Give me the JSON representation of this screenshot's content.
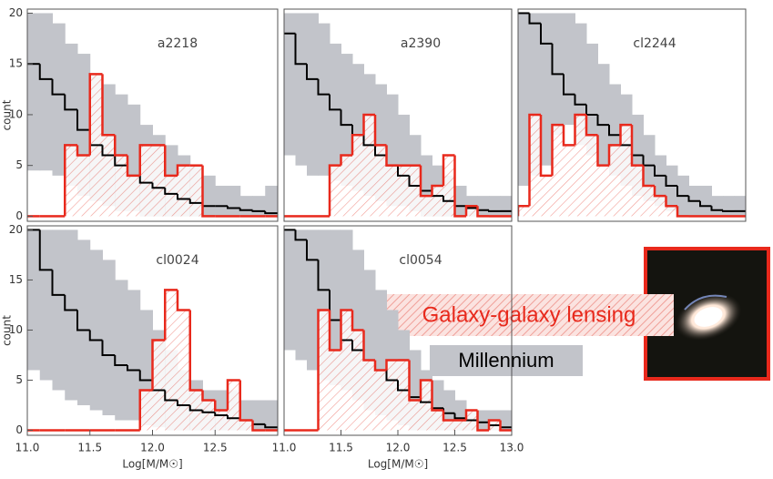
{
  "legend": [
    {
      "name": "Galaxy-galaxy lensing",
      "color": "#e8291c"
    },
    {
      "name": "Millennium",
      "color": "#c2c4ca"
    }
  ],
  "chart_data": [
    {
      "type": "histogram",
      "title": "a2218",
      "ylabel": "count",
      "bins": [
        11.0,
        11.1,
        11.2,
        11.3,
        11.4,
        11.5,
        11.6,
        11.7,
        11.8,
        11.9,
        12.0,
        12.1,
        12.2,
        12.3,
        12.4,
        12.5,
        12.6,
        12.7,
        12.8,
        12.9,
        13.0
      ],
      "counts": [
        0,
        0,
        0,
        7,
        6,
        14,
        8,
        6,
        4,
        7,
        7,
        4,
        5,
        5,
        0,
        0,
        0,
        0,
        0,
        0
      ],
      "median": [
        15,
        13.5,
        12,
        10.5,
        8.5,
        7,
        6,
        5,
        4,
        3.3,
        2.8,
        2.2,
        1.7,
        1.3,
        1,
        1,
        0.8,
        0.6,
        0.5,
        0.3
      ],
      "band_low": [
        4.5,
        4.5,
        4,
        3,
        2,
        1.5,
        1,
        0.5,
        0.5,
        0,
        0,
        0,
        0,
        0,
        0,
        0,
        0,
        0,
        0,
        0
      ],
      "band_high": [
        20,
        20,
        19,
        17,
        16,
        14,
        13,
        12,
        11,
        9,
        8,
        7,
        6,
        5,
        4,
        3,
        3,
        2,
        2,
        3
      ],
      "ylim": [
        -0.5,
        20.4
      ],
      "yticks": [
        0,
        5,
        10,
        15,
        20
      ]
    },
    {
      "type": "histogram",
      "title": "a2390",
      "bins": [
        11.0,
        11.1,
        11.2,
        11.3,
        11.4,
        11.5,
        11.6,
        11.7,
        11.8,
        11.9,
        12.0,
        12.1,
        12.2,
        12.3,
        12.4,
        12.5,
        12.6,
        12.7,
        12.8,
        12.9,
        13.0
      ],
      "counts": [
        0,
        0,
        0,
        0,
        5,
        6,
        8,
        10,
        7,
        5,
        5,
        5,
        2,
        3,
        6,
        0,
        1,
        0,
        0,
        0
      ],
      "median": [
        18,
        15,
        13.5,
        12,
        10.5,
        9,
        8,
        7,
        6,
        5,
        4,
        3,
        2.5,
        2,
        1.5,
        1,
        0.8,
        0.6,
        0.5,
        0.5
      ],
      "band_low": [
        6,
        5,
        4,
        4,
        3.5,
        3,
        2.5,
        2,
        1.5,
        1,
        1,
        0.5,
        0,
        0,
        0,
        0,
        0,
        0,
        0,
        0
      ],
      "band_high": [
        20,
        20,
        20,
        19,
        17,
        16,
        15,
        14,
        13,
        12,
        10,
        8,
        6,
        5,
        4,
        3,
        2,
        2,
        2,
        2
      ],
      "ylim": [
        -0.5,
        20.4
      ]
    },
    {
      "type": "histogram",
      "title": "cl2244",
      "bins": [
        11.0,
        11.1,
        11.2,
        11.3,
        11.4,
        11.5,
        11.6,
        11.7,
        11.8,
        11.9,
        12.0,
        12.1,
        12.2,
        12.3,
        12.4,
        12.5,
        12.6,
        12.7,
        12.8,
        12.9,
        13.0
      ],
      "counts": [
        1,
        10,
        4,
        9,
        7,
        10,
        8,
        5,
        7,
        9,
        5,
        3,
        2,
        1,
        0,
        0,
        0,
        0,
        0,
        0
      ],
      "median": [
        20,
        19,
        17,
        14,
        12,
        11,
        10,
        9,
        8,
        7,
        6,
        5,
        4,
        3,
        2,
        1.5,
        1,
        0.6,
        0.5,
        0.5
      ],
      "band_low": [
        3,
        4,
        5,
        8,
        9,
        7,
        6,
        5,
        4,
        3,
        2,
        1.5,
        1,
        0.5,
        0,
        0,
        0,
        0,
        0,
        0
      ],
      "band_high": [
        20,
        20,
        20,
        20,
        20,
        19,
        17,
        15,
        13,
        12,
        10,
        8,
        6,
        5,
        4,
        3,
        3,
        2,
        2,
        2
      ],
      "ylim": [
        -0.5,
        20.4
      ]
    },
    {
      "type": "histogram",
      "title": "cl0024",
      "ylabel": "count",
      "xlabel": "Log[M/M☉]",
      "bins": [
        11.0,
        11.1,
        11.2,
        11.3,
        11.4,
        11.5,
        11.6,
        11.7,
        11.8,
        11.9,
        12.0,
        12.1,
        12.2,
        12.3,
        12.4,
        12.5,
        12.6,
        12.7,
        12.8,
        12.9,
        13.0
      ],
      "counts": [
        0,
        0,
        0,
        0,
        0,
        0,
        0,
        0,
        0,
        4,
        9,
        14,
        12,
        4,
        3,
        2,
        5,
        1,
        0,
        0
      ],
      "median": [
        20,
        16,
        13.5,
        12,
        10,
        9,
        7.5,
        6.5,
        6,
        5,
        4,
        3,
        2.5,
        2,
        1.8,
        1.5,
        1.2,
        1,
        0.6,
        0.3
      ],
      "band_low": [
        6,
        5,
        4,
        3,
        2.5,
        2,
        1.5,
        1,
        1,
        0.5,
        0.3,
        0,
        0,
        0,
        0,
        0,
        0,
        0,
        0,
        0
      ],
      "band_high": [
        20,
        20,
        20,
        20,
        19,
        18,
        17,
        15,
        14,
        12,
        10,
        8,
        6,
        5,
        4,
        4,
        4,
        3,
        3,
        3
      ],
      "xlim": [
        11.0,
        13.0
      ],
      "ylim": [
        -0.5,
        20.4
      ],
      "yticks": [
        0,
        5,
        10,
        15,
        20
      ],
      "xticks": [
        {
          "value": 11.0,
          "label": "11.0"
        },
        {
          "value": 11.5,
          "label": "11.5"
        },
        {
          "value": 12.0,
          "label": "12.0"
        },
        {
          "value": 12.5,
          "label": "12.5"
        }
      ]
    },
    {
      "type": "histogram",
      "title": "cl0054",
      "xlabel": "Log[M/M☉]",
      "bins": [
        11.0,
        11.1,
        11.2,
        11.3,
        11.4,
        11.5,
        11.6,
        11.7,
        11.8,
        11.9,
        12.0,
        12.1,
        12.2,
        12.3,
        12.4,
        12.5,
        12.6,
        12.7,
        12.8,
        12.9,
        13.0
      ],
      "counts": [
        0,
        0,
        0,
        12,
        8,
        12,
        10,
        7,
        6,
        7,
        7,
        3,
        5,
        2,
        1,
        1,
        2,
        0,
        1,
        0
      ],
      "median": [
        20,
        19,
        17,
        14,
        11,
        9,
        8,
        7,
        6,
        5,
        4,
        3.3,
        2.8,
        2.2,
        1.7,
        1.2,
        1,
        0.8,
        0.5,
        0.3
      ],
      "band_low": [
        8,
        7,
        6,
        5,
        4.5,
        4,
        3,
        2,
        1.5,
        1,
        0.5,
        0,
        0,
        0,
        0,
        0,
        0,
        0,
        0,
        0
      ],
      "band_high": [
        20,
        20,
        20,
        20,
        20,
        20,
        18,
        16,
        14,
        12,
        10,
        8,
        6,
        5,
        4,
        3,
        2,
        2,
        2,
        2
      ],
      "xlim": [
        11.0,
        13.0
      ],
      "ylim": [
        -0.5,
        20.4
      ],
      "xticks": [
        {
          "value": 11.0,
          "label": "11.0"
        },
        {
          "value": 11.5,
          "label": "11.5"
        },
        {
          "value": 12.0,
          "label": "12.0"
        },
        {
          "value": 12.5,
          "label": "12.5"
        },
        {
          "value": 13.0,
          "label": "13.0"
        }
      ]
    }
  ]
}
